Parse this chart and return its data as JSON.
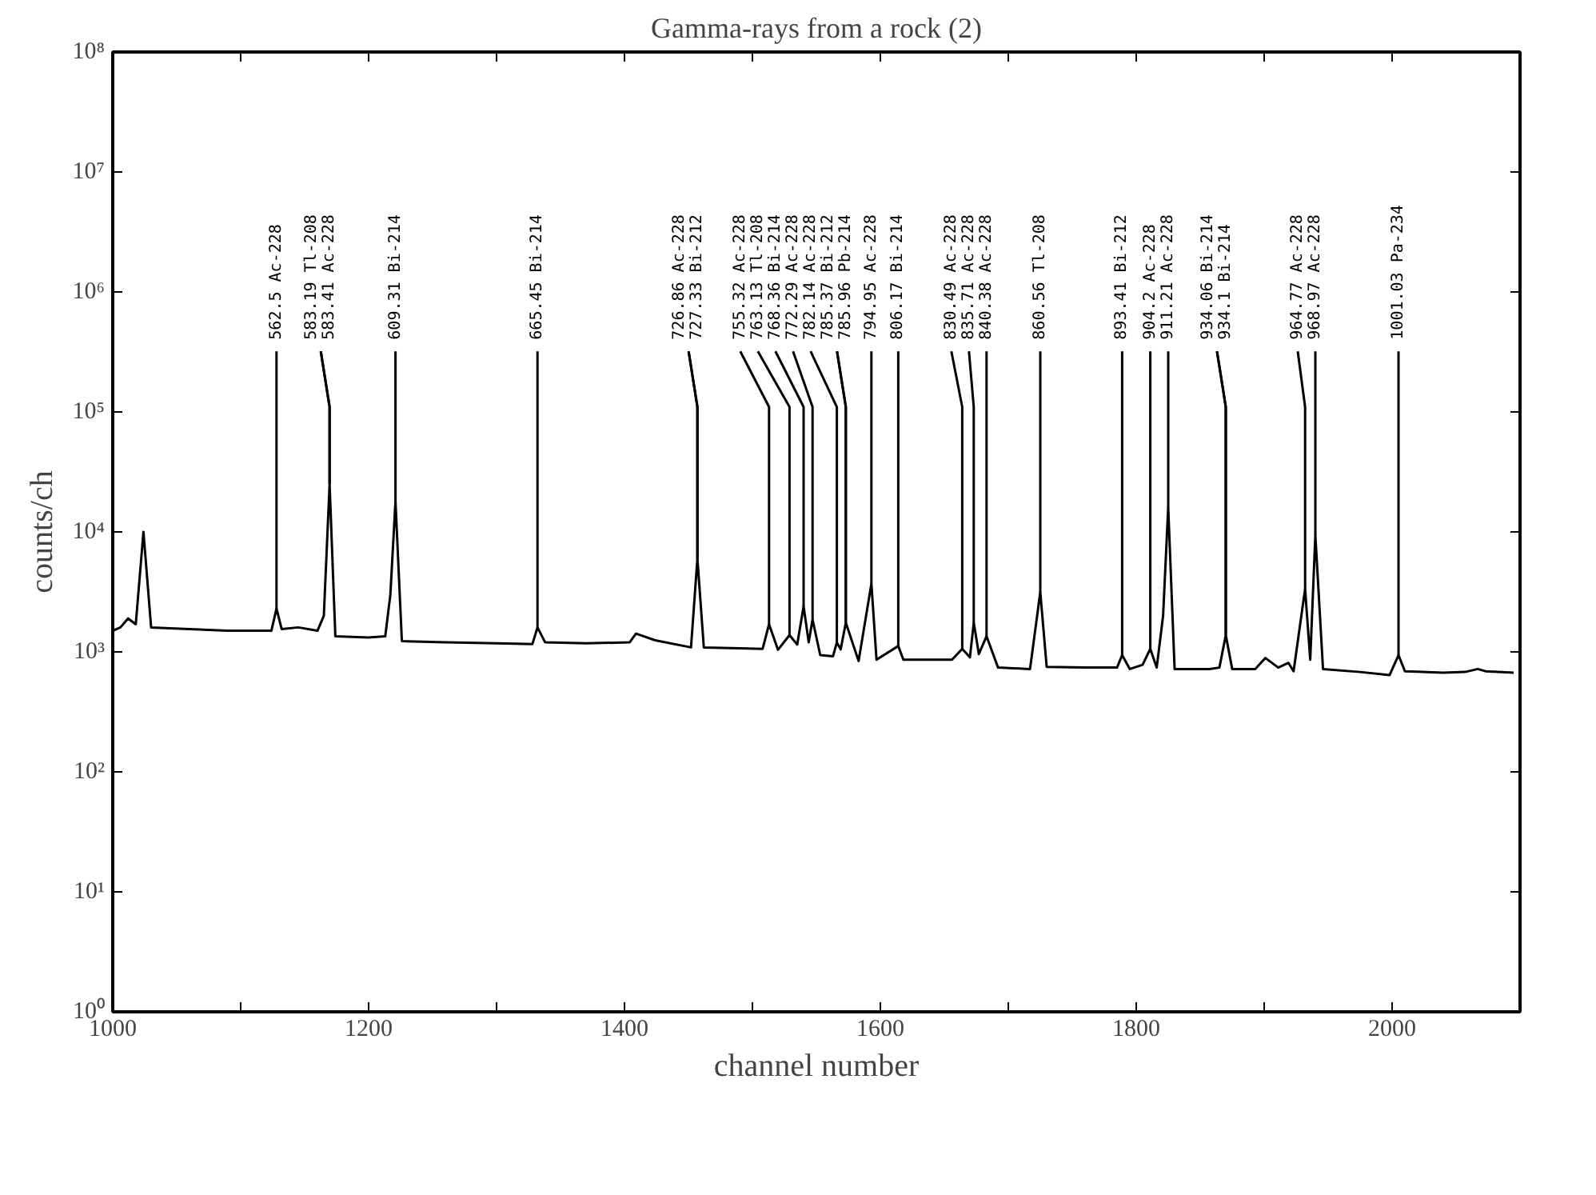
{
  "chart_data": {
    "type": "line",
    "title": "Gamma-rays from a rock (2)",
    "xlabel": "channel number",
    "ylabel": "counts/ch",
    "log": "y",
    "grid": false,
    "marker": "none",
    "line_style": "solid",
    "xlim": [
      1000,
      2100
    ],
    "ylim": [
      1,
      100000000
    ],
    "xticks": [
      1000,
      {
        "value": 1100,
        "label": null
      },
      1200,
      {
        "value": 1300,
        "label": null
      },
      1400,
      {
        "value": 1500,
        "label": null
      },
      1600,
      {
        "value": 1700,
        "label": null
      },
      1800,
      {
        "value": 1900,
        "label": null
      },
      2000
    ],
    "yticks": [
      {
        "value": 1,
        "label": "10⁰"
      },
      {
        "value": 10,
        "label": "10¹"
      },
      {
        "value": 100,
        "label": "10²"
      },
      {
        "value": 1000,
        "label": "10³"
      },
      {
        "value": 10000,
        "label": "10⁴"
      },
      {
        "value": 100000,
        "label": "10⁵"
      },
      {
        "value": 1000000,
        "label": "10⁶"
      },
      {
        "value": 10000000,
        "label": "10⁷"
      },
      {
        "value": 100000000,
        "label": "10⁸"
      }
    ],
    "series": [
      {
        "color": "#000000",
        "x": [
          1000,
          1006,
          1012,
          1018,
          1024,
          1030,
          1060,
          1090,
          1124,
          1128,
          1132,
          1145,
          1160,
          1165,
          1169.5,
          1174,
          1200,
          1213,
          1217,
          1221,
          1226,
          1260,
          1300,
          1328,
          1332,
          1338,
          1370,
          1404,
          1409,
          1424,
          1452,
          1457,
          1462,
          1490,
          1508,
          1513,
          1520,
          1529,
          1535,
          1540,
          1544,
          1547,
          1553,
          1563,
          1566,
          1569,
          1573,
          1583,
          1593,
          1597,
          1614,
          1618,
          1656,
          1664,
          1670,
          1673,
          1677,
          1683,
          1692,
          1717,
          1725,
          1730,
          1760,
          1785,
          1789,
          1795,
          1805,
          1811,
          1816,
          1821,
          1825,
          1830,
          1857,
          1865,
          1870,
          1875,
          1893,
          1901,
          1911,
          1919,
          1923,
          1932,
          1936,
          1940,
          1946,
          1975,
          1998,
          2005,
          2010,
          2040,
          2057,
          2067,
          2073,
          2095
        ],
        "values": [
          1500,
          1600,
          1900,
          1700,
          10000,
          1600,
          1550,
          1500,
          1500,
          2300,
          1550,
          1600,
          1500,
          2000,
          25000,
          1350,
          1320,
          1350,
          3000,
          18000,
          1230,
          1200,
          1180,
          1160,
          1600,
          1200,
          1180,
          1200,
          1420,
          1250,
          1090,
          6000,
          1090,
          1070,
          1060,
          1700,
          1040,
          1380,
          1150,
          2400,
          1200,
          1860,
          940,
          920,
          1200,
          1050,
          1750,
          840,
          3700,
          860,
          1120,
          860,
          860,
          1060,
          900,
          1750,
          960,
          1350,
          740,
          720,
          3150,
          750,
          740,
          740,
          940,
          720,
          780,
          1060,
          740,
          2000,
          16000,
          720,
          720,
          740,
          1380,
          720,
          720,
          890,
          740,
          810,
          690,
          3350,
          860,
          9400,
          720,
          680,
          640,
          940,
          690,
          670,
          680,
          720,
          690,
          670
        ]
      }
    ],
    "annotations": [
      {
        "text": "562.5  Ac-228",
        "x": 1128,
        "y": 2300
      },
      {
        "text": "583.19 Tl-208",
        "x": 1169.5,
        "y": 25000
      },
      {
        "text": "583.41 Ac-228",
        "x": 1169.5,
        "y": 25000
      },
      {
        "text": "609.31 Bi-214",
        "x": 1221,
        "y": 18000
      },
      {
        "text": "665.45 Bi-214",
        "x": 1332,
        "y": 1600
      },
      {
        "text": "726.86 Ac-228",
        "x": 1457,
        "y": 6000
      },
      {
        "text": "727.33 Bi-212",
        "x": 1457,
        "y": 6000
      },
      {
        "text": "755.32 Ac-228",
        "x": 1513,
        "y": 1700
      },
      {
        "text": "763.13 Tl-208",
        "x": 1529,
        "y": 1380
      },
      {
        "text": "768.36 Bi-214",
        "x": 1540,
        "y": 2400
      },
      {
        "text": "772.29 Ac-228",
        "x": 1547,
        "y": 1860
      },
      {
        "text": "782.14 Ac-228",
        "x": 1566,
        "y": 1200
      },
      {
        "text": "785.37 Bi-212",
        "x": 1573,
        "y": 1750
      },
      {
        "text": "785.96 Pb-214",
        "x": 1573,
        "y": 1750
      },
      {
        "text": "794.95 Ac-228",
        "x": 1593,
        "y": 3700
      },
      {
        "text": "806.17 Bi-214",
        "x": 1614,
        "y": 1120
      },
      {
        "text": "830.49 Ac-228",
        "x": 1664,
        "y": 1060
      },
      {
        "text": "835.71 Ac-228",
        "x": 1673,
        "y": 1750
      },
      {
        "text": "840.38 Ac-228",
        "x": 1683,
        "y": 1350
      },
      {
        "text": "860.56 Tl-208",
        "x": 1725,
        "y": 3150
      },
      {
        "text": "893.41 Bi-212",
        "x": 1789,
        "y": 940
      },
      {
        "text": "904.2  Ac-228",
        "x": 1811,
        "y": 1060
      },
      {
        "text": "911.21 Ac-228",
        "x": 1825,
        "y": 16000
      },
      {
        "text": "934.06 Bi-214",
        "x": 1870,
        "y": 1380
      },
      {
        "text": "934.1  Bi-214",
        "x": 1870,
        "y": 1380
      },
      {
        "text": "964.77 Ac-228",
        "x": 1932,
        "y": 3350
      },
      {
        "text": "968.97 Ac-228",
        "x": 1940,
        "y": 9400
      },
      {
        "text": "1001.03 Pa-234",
        "x": 2005,
        "y": 940
      }
    ]
  }
}
